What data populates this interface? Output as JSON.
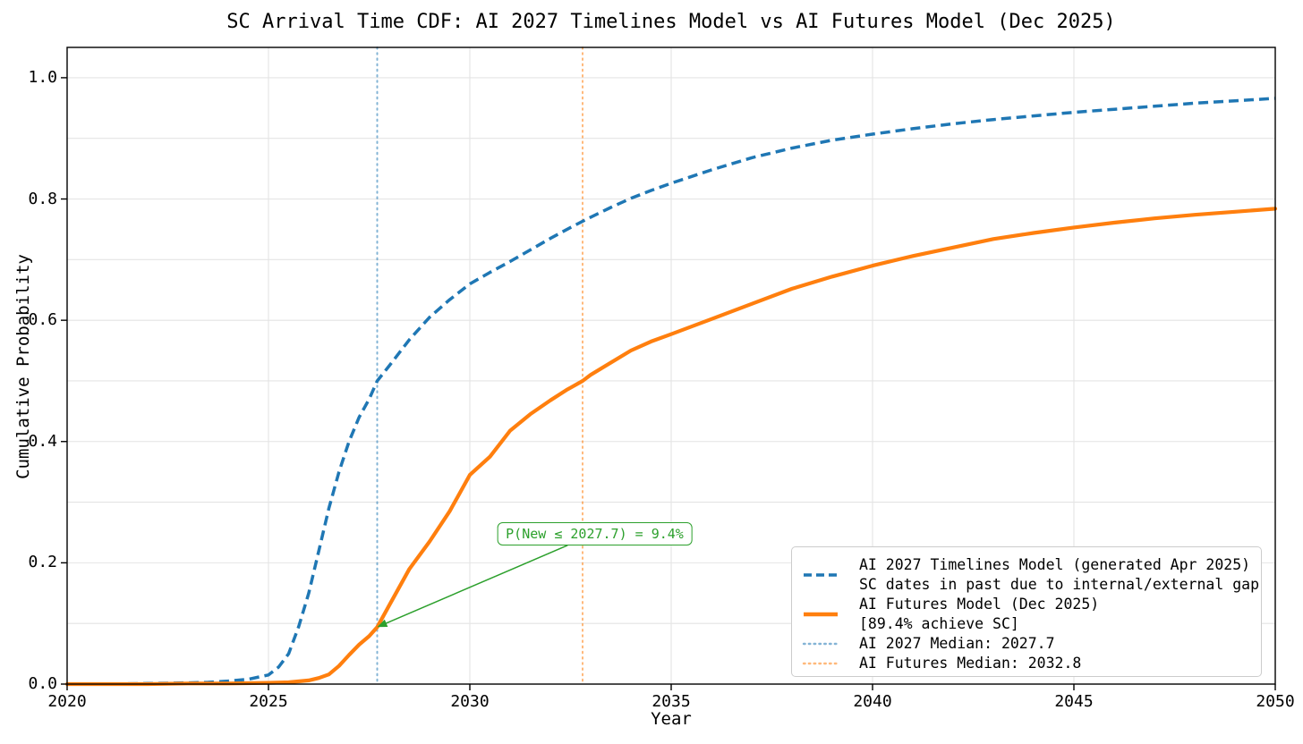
{
  "chart_data": {
    "type": "line",
    "title": "SC Arrival Time CDF: AI 2027 Timelines Model vs AI Futures Model (Dec 2025)",
    "xlabel": "Year",
    "ylabel": "Cumulative Probability",
    "xlim": [
      2020,
      2050
    ],
    "ylim": [
      0,
      1.05
    ],
    "x_ticks": [
      2020,
      2025,
      2030,
      2035,
      2040,
      2045,
      2050
    ],
    "y_ticks": [
      "0.0",
      "0.2",
      "0.4",
      "0.6",
      "0.8",
      "1.0"
    ],
    "grid": {
      "on": true,
      "horizontal_step": 0.1,
      "vertical_at": [
        2025,
        2030,
        2035,
        2040,
        2045
      ],
      "color": "#e4e4e4"
    },
    "legend_position": "lower right",
    "series": [
      {
        "name": "AI 2027 Timelines Model (generated Apr 2025)",
        "note": "SC dates in past due to internal/external gap",
        "style": "dashed",
        "color": "#1f77b4",
        "points": [
          [
            2020,
            0.0
          ],
          [
            2021,
            0.0
          ],
          [
            2022,
            0.001
          ],
          [
            2023,
            0.002
          ],
          [
            2023.5,
            0.003
          ],
          [
            2024,
            0.005
          ],
          [
            2024.5,
            0.008
          ],
          [
            2025,
            0.015
          ],
          [
            2025.25,
            0.028
          ],
          [
            2025.5,
            0.05
          ],
          [
            2025.75,
            0.095
          ],
          [
            2026,
            0.15
          ],
          [
            2026.25,
            0.22
          ],
          [
            2026.5,
            0.29
          ],
          [
            2026.75,
            0.35
          ],
          [
            2027,
            0.4
          ],
          [
            2027.25,
            0.44
          ],
          [
            2027.5,
            0.47
          ],
          [
            2027.7,
            0.5
          ],
          [
            2028,
            0.525
          ],
          [
            2028.5,
            0.568
          ],
          [
            2029,
            0.605
          ],
          [
            2029.5,
            0.634
          ],
          [
            2030,
            0.66
          ],
          [
            2030.5,
            0.679
          ],
          [
            2031,
            0.697
          ],
          [
            2031.5,
            0.716
          ],
          [
            2032,
            0.735
          ],
          [
            2032.5,
            0.753
          ],
          [
            2033,
            0.77
          ],
          [
            2033.5,
            0.786
          ],
          [
            2034,
            0.801
          ],
          [
            2034.5,
            0.814
          ],
          [
            2035,
            0.826
          ],
          [
            2036,
            0.848
          ],
          [
            2037,
            0.868
          ],
          [
            2038,
            0.884
          ],
          [
            2039,
            0.897
          ],
          [
            2040,
            0.907
          ],
          [
            2041,
            0.916
          ],
          [
            2042,
            0.924
          ],
          [
            2043,
            0.931
          ],
          [
            2044,
            0.937
          ],
          [
            2045,
            0.943
          ],
          [
            2046,
            0.948
          ],
          [
            2047,
            0.953
          ],
          [
            2048,
            0.958
          ],
          [
            2049,
            0.962
          ],
          [
            2050,
            0.966
          ]
        ]
      },
      {
        "name": "AI Futures Model (Dec 2025)",
        "note": "[89.4% achieve SC]",
        "style": "solid",
        "color": "#ff7f0e",
        "points": [
          [
            2020,
            0.0
          ],
          [
            2021,
            0.0
          ],
          [
            2022,
            0.0
          ],
          [
            2023,
            0.001
          ],
          [
            2024,
            0.001
          ],
          [
            2025,
            0.002
          ],
          [
            2025.5,
            0.003
          ],
          [
            2026,
            0.006
          ],
          [
            2026.25,
            0.01
          ],
          [
            2026.5,
            0.016
          ],
          [
            2026.75,
            0.03
          ],
          [
            2027,
            0.048
          ],
          [
            2027.25,
            0.065
          ],
          [
            2027.5,
            0.079
          ],
          [
            2027.7,
            0.094
          ],
          [
            2028,
            0.13
          ],
          [
            2028.5,
            0.19
          ],
          [
            2029,
            0.235
          ],
          [
            2029.5,
            0.285
          ],
          [
            2030,
            0.345
          ],
          [
            2030.5,
            0.375
          ],
          [
            2031,
            0.418
          ],
          [
            2031.5,
            0.445
          ],
          [
            2032,
            0.468
          ],
          [
            2032.4,
            0.485
          ],
          [
            2032.8,
            0.5
          ],
          [
            2033,
            0.51
          ],
          [
            2033.5,
            0.53
          ],
          [
            2034,
            0.55
          ],
          [
            2034.5,
            0.565
          ],
          [
            2035,
            0.577
          ],
          [
            2036,
            0.602
          ],
          [
            2037,
            0.627
          ],
          [
            2038,
            0.652
          ],
          [
            2039,
            0.672
          ],
          [
            2040,
            0.69
          ],
          [
            2041,
            0.706
          ],
          [
            2042,
            0.72
          ],
          [
            2043,
            0.734
          ],
          [
            2044,
            0.744
          ],
          [
            2045,
            0.753
          ],
          [
            2046,
            0.761
          ],
          [
            2047,
            0.768
          ],
          [
            2048,
            0.774
          ],
          [
            2049,
            0.779
          ],
          [
            2050,
            0.784
          ]
        ]
      }
    ],
    "median_lines": [
      {
        "name": "AI 2027 Median",
        "x": 2027.7,
        "color": "#1f77b4",
        "opacity": 0.55
      },
      {
        "name": "AI Futures Median",
        "x": 2032.8,
        "color": "#ff7f0e",
        "opacity": 0.55
      }
    ],
    "annotation": {
      "text": "P(New ≤ 2027.7) = 9.4%",
      "point_x": 2027.7,
      "point_y": 0.094,
      "label_x": 2033.1,
      "label_y": 0.248,
      "color": "#2ca02c"
    }
  },
  "legend": {
    "items": [
      {
        "line1": "AI 2027 Timelines Model (generated Apr 2025)",
        "line2": "SC dates in past due to internal/external gap",
        "style": "dashed",
        "color": "#1f77b4"
      },
      {
        "line1": "AI Futures Model (Dec 2025)",
        "line2": "[89.4% achieve SC]",
        "style": "solid",
        "color": "#ff7f0e"
      },
      {
        "line1": "AI 2027 Median: 2027.7",
        "style": "dotted",
        "color": "#1f77b4"
      },
      {
        "line1": "AI Futures Median: 2032.8",
        "style": "dotted",
        "color": "#ff7f0e"
      }
    ]
  }
}
